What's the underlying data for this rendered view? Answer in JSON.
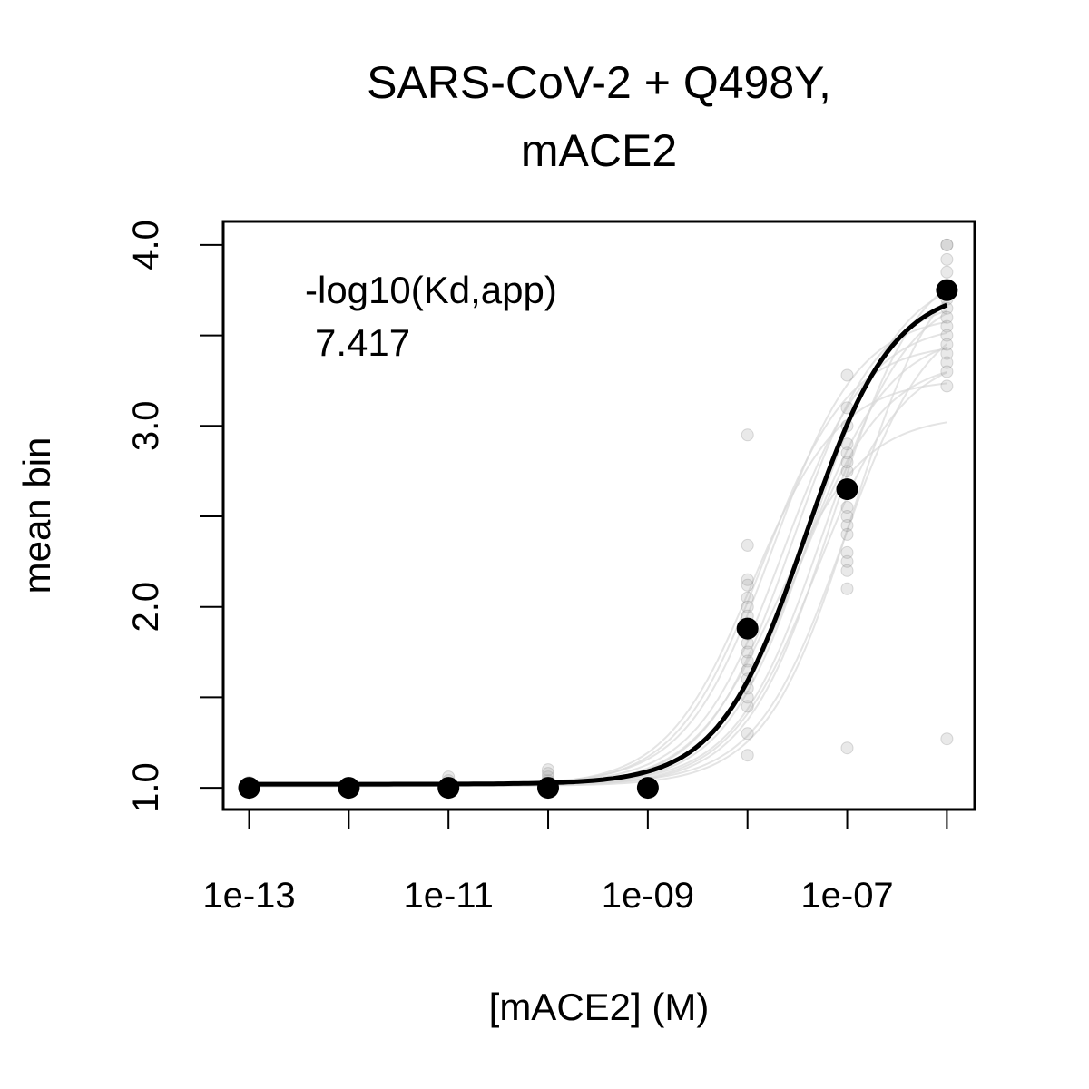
{
  "chart_data": {
    "type": "scatter",
    "title": "SARS-CoV-2 + Q498Y,\nmACE2",
    "title_lines": [
      "SARS-CoV-2 + Q498Y,",
      "mACE2"
    ],
    "xlabel": "[mACE2] (M)",
    "ylabel": "mean bin",
    "x_scale": "log10",
    "x_ticks": [
      1e-13,
      1e-11,
      1e-09,
      1e-07
    ],
    "x_tick_labels": [
      "1e-13",
      "1e-11",
      "1e-09",
      "1e-07"
    ],
    "x_minor_ticks": [
      1e-12,
      1e-10,
      1e-08,
      1e-06
    ],
    "y_ticks": [
      1.0,
      1.5,
      2.0,
      2.5,
      3.0,
      3.5,
      4.0
    ],
    "y_tick_labels": [
      "1.0",
      "",
      "2.0",
      "",
      "3.0",
      "",
      "4.0"
    ],
    "xlim": [
      5.5e-14,
      1.9e-06
    ],
    "ylim": [
      0.88,
      4.13
    ],
    "grid": false,
    "annotation": {
      "label": "-log10(Kd,app)",
      "value": "7.417"
    },
    "series": [
      {
        "role": "highlighted-points",
        "x": [
          1e-13,
          1e-12,
          1e-11,
          1e-10,
          1e-09,
          1e-08,
          1e-07,
          1e-06
        ],
        "y": [
          1.0,
          1.0,
          1.0,
          1.0,
          1.0,
          1.88,
          2.65,
          3.75
        ]
      },
      {
        "role": "fit-curve",
        "model": "hill",
        "log10_kd": -7.417,
        "hill": 1.0,
        "baseline": 1.02,
        "amplitude": 2.75
      },
      {
        "role": "background-points",
        "groups": [
          {
            "x": 1e-13,
            "y": [
              1.0,
              1.0,
              1.01,
              1.02,
              1.03
            ]
          },
          {
            "x": 1e-12,
            "y": [
              1.0,
              1.0,
              1.01,
              1.02
            ]
          },
          {
            "x": 1e-11,
            "y": [
              1.0,
              1.01,
              1.02,
              1.04,
              1.06
            ]
          },
          {
            "x": 1e-10,
            "y": [
              1.0,
              1.02,
              1.04,
              1.06,
              1.08,
              1.1
            ]
          },
          {
            "x": 1e-09,
            "y": [
              1.0,
              1.01,
              1.02
            ]
          },
          {
            "x": 1e-08,
            "y": [
              2.95,
              2.34,
              2.15,
              2.12,
              2.05,
              2.0,
              1.95,
              1.9,
              1.85,
              1.8,
              1.75,
              1.7,
              1.65,
              1.6,
              1.55,
              1.5,
              1.45,
              1.3,
              1.18
            ]
          },
          {
            "x": 1e-07,
            "y": [
              3.28,
              3.1,
              3.0,
              2.9,
              2.85,
              2.8,
              2.75,
              2.65,
              2.55,
              2.5,
              2.45,
              2.4,
              2.3,
              2.25,
              2.2,
              2.1,
              1.22
            ]
          },
          {
            "x": 1e-06,
            "y": [
              4.0,
              4.0,
              3.92,
              3.85,
              3.78,
              3.7,
              3.65,
              3.6,
              3.55,
              3.5,
              3.45,
              3.4,
              3.35,
              3.3,
              3.22,
              1.27
            ]
          }
        ]
      },
      {
        "role": "background-curves",
        "curves": [
          {
            "log10_kd": -7.95,
            "baseline": 1.01,
            "amplitude": 2.25
          },
          {
            "log10_kd": -7.85,
            "baseline": 1.01,
            "amplitude": 2.45
          },
          {
            "log10_kd": -7.75,
            "baseline": 1.02,
            "amplitude": 2.6
          },
          {
            "log10_kd": -7.65,
            "baseline": 1.02,
            "amplitude": 2.55
          },
          {
            "log10_kd": -7.55,
            "baseline": 1.01,
            "amplitude": 2.7
          },
          {
            "log10_kd": -7.45,
            "baseline": 1.02,
            "amplitude": 2.5
          },
          {
            "log10_kd": -7.35,
            "baseline": 1.01,
            "amplitude": 2.85
          },
          {
            "log10_kd": -7.25,
            "baseline": 1.02,
            "amplitude": 2.75
          },
          {
            "log10_kd": -7.15,
            "baseline": 1.01,
            "amplitude": 2.95
          },
          {
            "log10_kd": -7.05,
            "baseline": 1.02,
            "amplitude": 2.65
          },
          {
            "log10_kd": -6.95,
            "baseline": 1.01,
            "amplitude": 3.0
          },
          {
            "log10_kd": -7.7,
            "baseline": 1.01,
            "amplitude": 2.05
          },
          {
            "log10_kd": -7.5,
            "baseline": 1.02,
            "amplitude": 2.35
          },
          {
            "log10_kd": -7.3,
            "baseline": 1.01,
            "amplitude": 2.4
          }
        ]
      }
    ]
  }
}
